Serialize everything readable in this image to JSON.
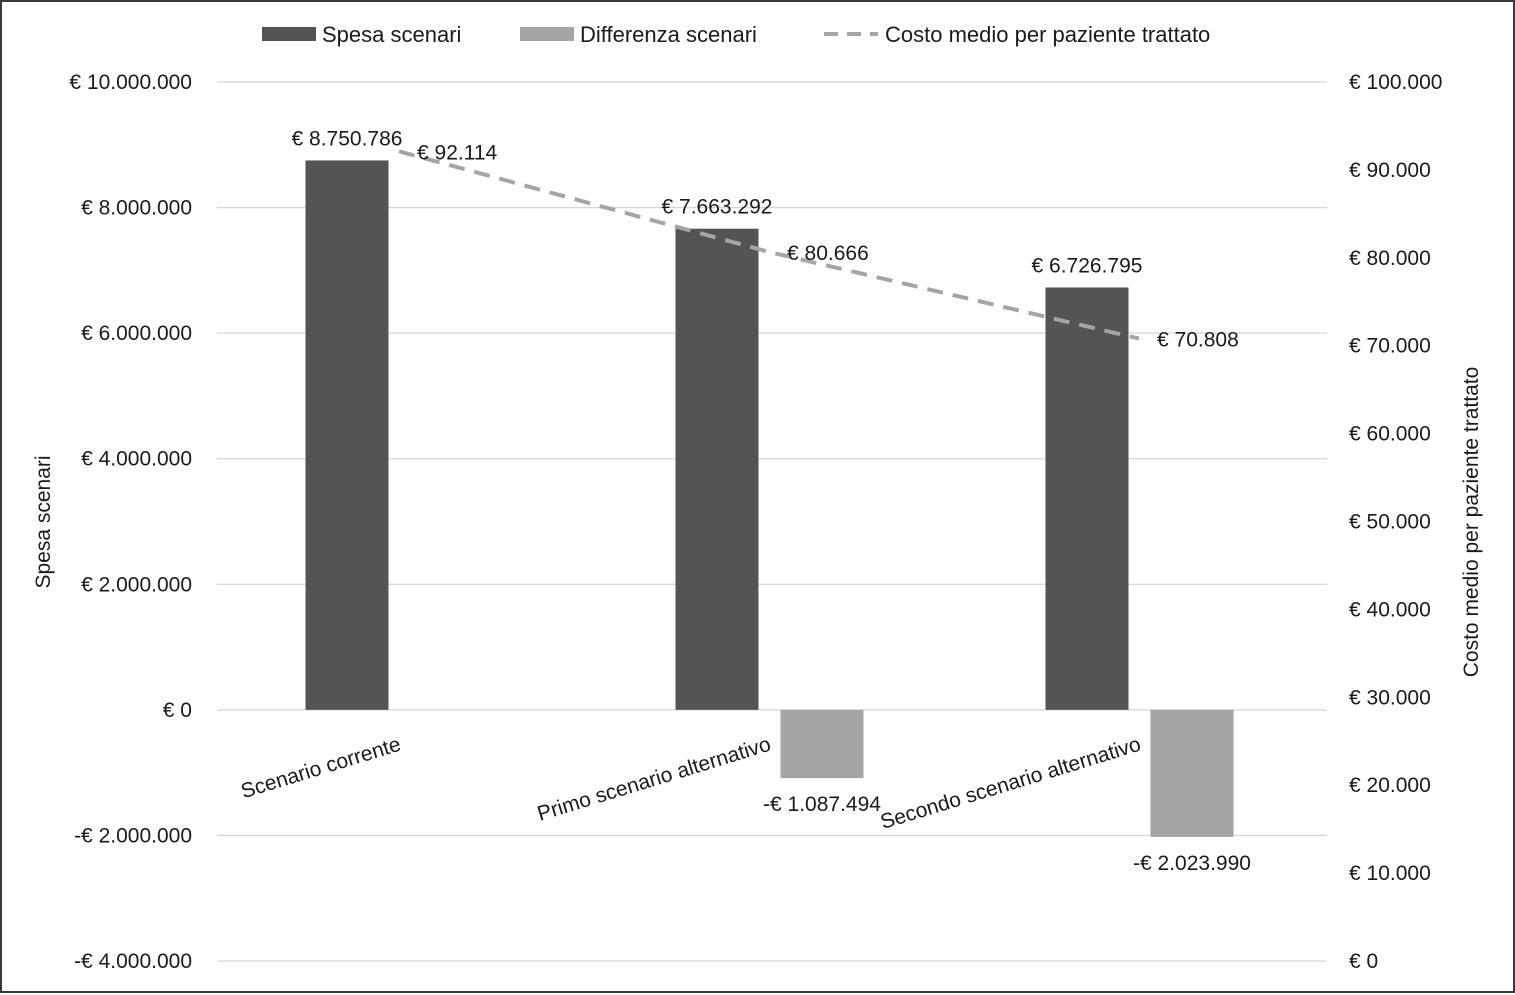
{
  "chart_data": {
    "type": "bar",
    "categories": [
      "Scenario corrente",
      "Primo scenario alternativo",
      "Secondo scenario alternativo"
    ],
    "series": [
      {
        "name": "Spesa scenari",
        "kind": "bar",
        "axis": "left",
        "color": "#545456",
        "values": [
          8750786,
          7663292,
          6726795
        ],
        "labels": [
          "€ 8.750.786",
          "€ 7.663.292",
          "€ 6.726.795"
        ]
      },
      {
        "name": "Differenza scenari",
        "kind": "bar",
        "axis": "left",
        "color": "#a5a5a7",
        "values": [
          null,
          -1087494,
          -2023990
        ],
        "labels": [
          "",
          "-€ 1.087.494",
          "-€ 2.023.990"
        ]
      },
      {
        "name": "Costo medio per paziente trattato",
        "kind": "line",
        "style": "dashed",
        "axis": "right",
        "color": "#a5a5a7",
        "values": [
          92114,
          80666,
          70808
        ],
        "labels": [
          "€ 92.114",
          "€ 80.666",
          "€ 70.808"
        ]
      }
    ],
    "left_axis": {
      "title": "Spesa scenari",
      "ylim": [
        -4000000,
        10000000
      ],
      "ticks": [
        10000000,
        8000000,
        6000000,
        4000000,
        2000000,
        0,
        -2000000,
        -4000000
      ],
      "tick_labels": [
        "€ 10.000.000",
        "€ 8.000.000",
        "€ 6.000.000",
        "€ 4.000.000",
        "€ 2.000.000",
        "€ 0",
        "-€ 2.000.000",
        "-€ 4.000.000"
      ]
    },
    "right_axis": {
      "title": "Costo medio per paziente trattato",
      "ylim": [
        0,
        100000
      ],
      "ticks": [
        100000,
        90000,
        80000,
        70000,
        60000,
        50000,
        40000,
        30000,
        20000,
        10000,
        0
      ],
      "tick_labels": [
        "€ 100.000",
        "€ 90.000",
        "€ 80.000",
        "€ 70.000",
        "€ 60.000",
        "€ 50.000",
        "€ 40.000",
        "€ 30.000",
        "€ 20.000",
        "€ 10.000",
        "€ 0"
      ]
    },
    "grid": true,
    "legend": "top-center",
    "gridline_color": "#d6d6d6",
    "text_color": "#1a1a1a"
  }
}
